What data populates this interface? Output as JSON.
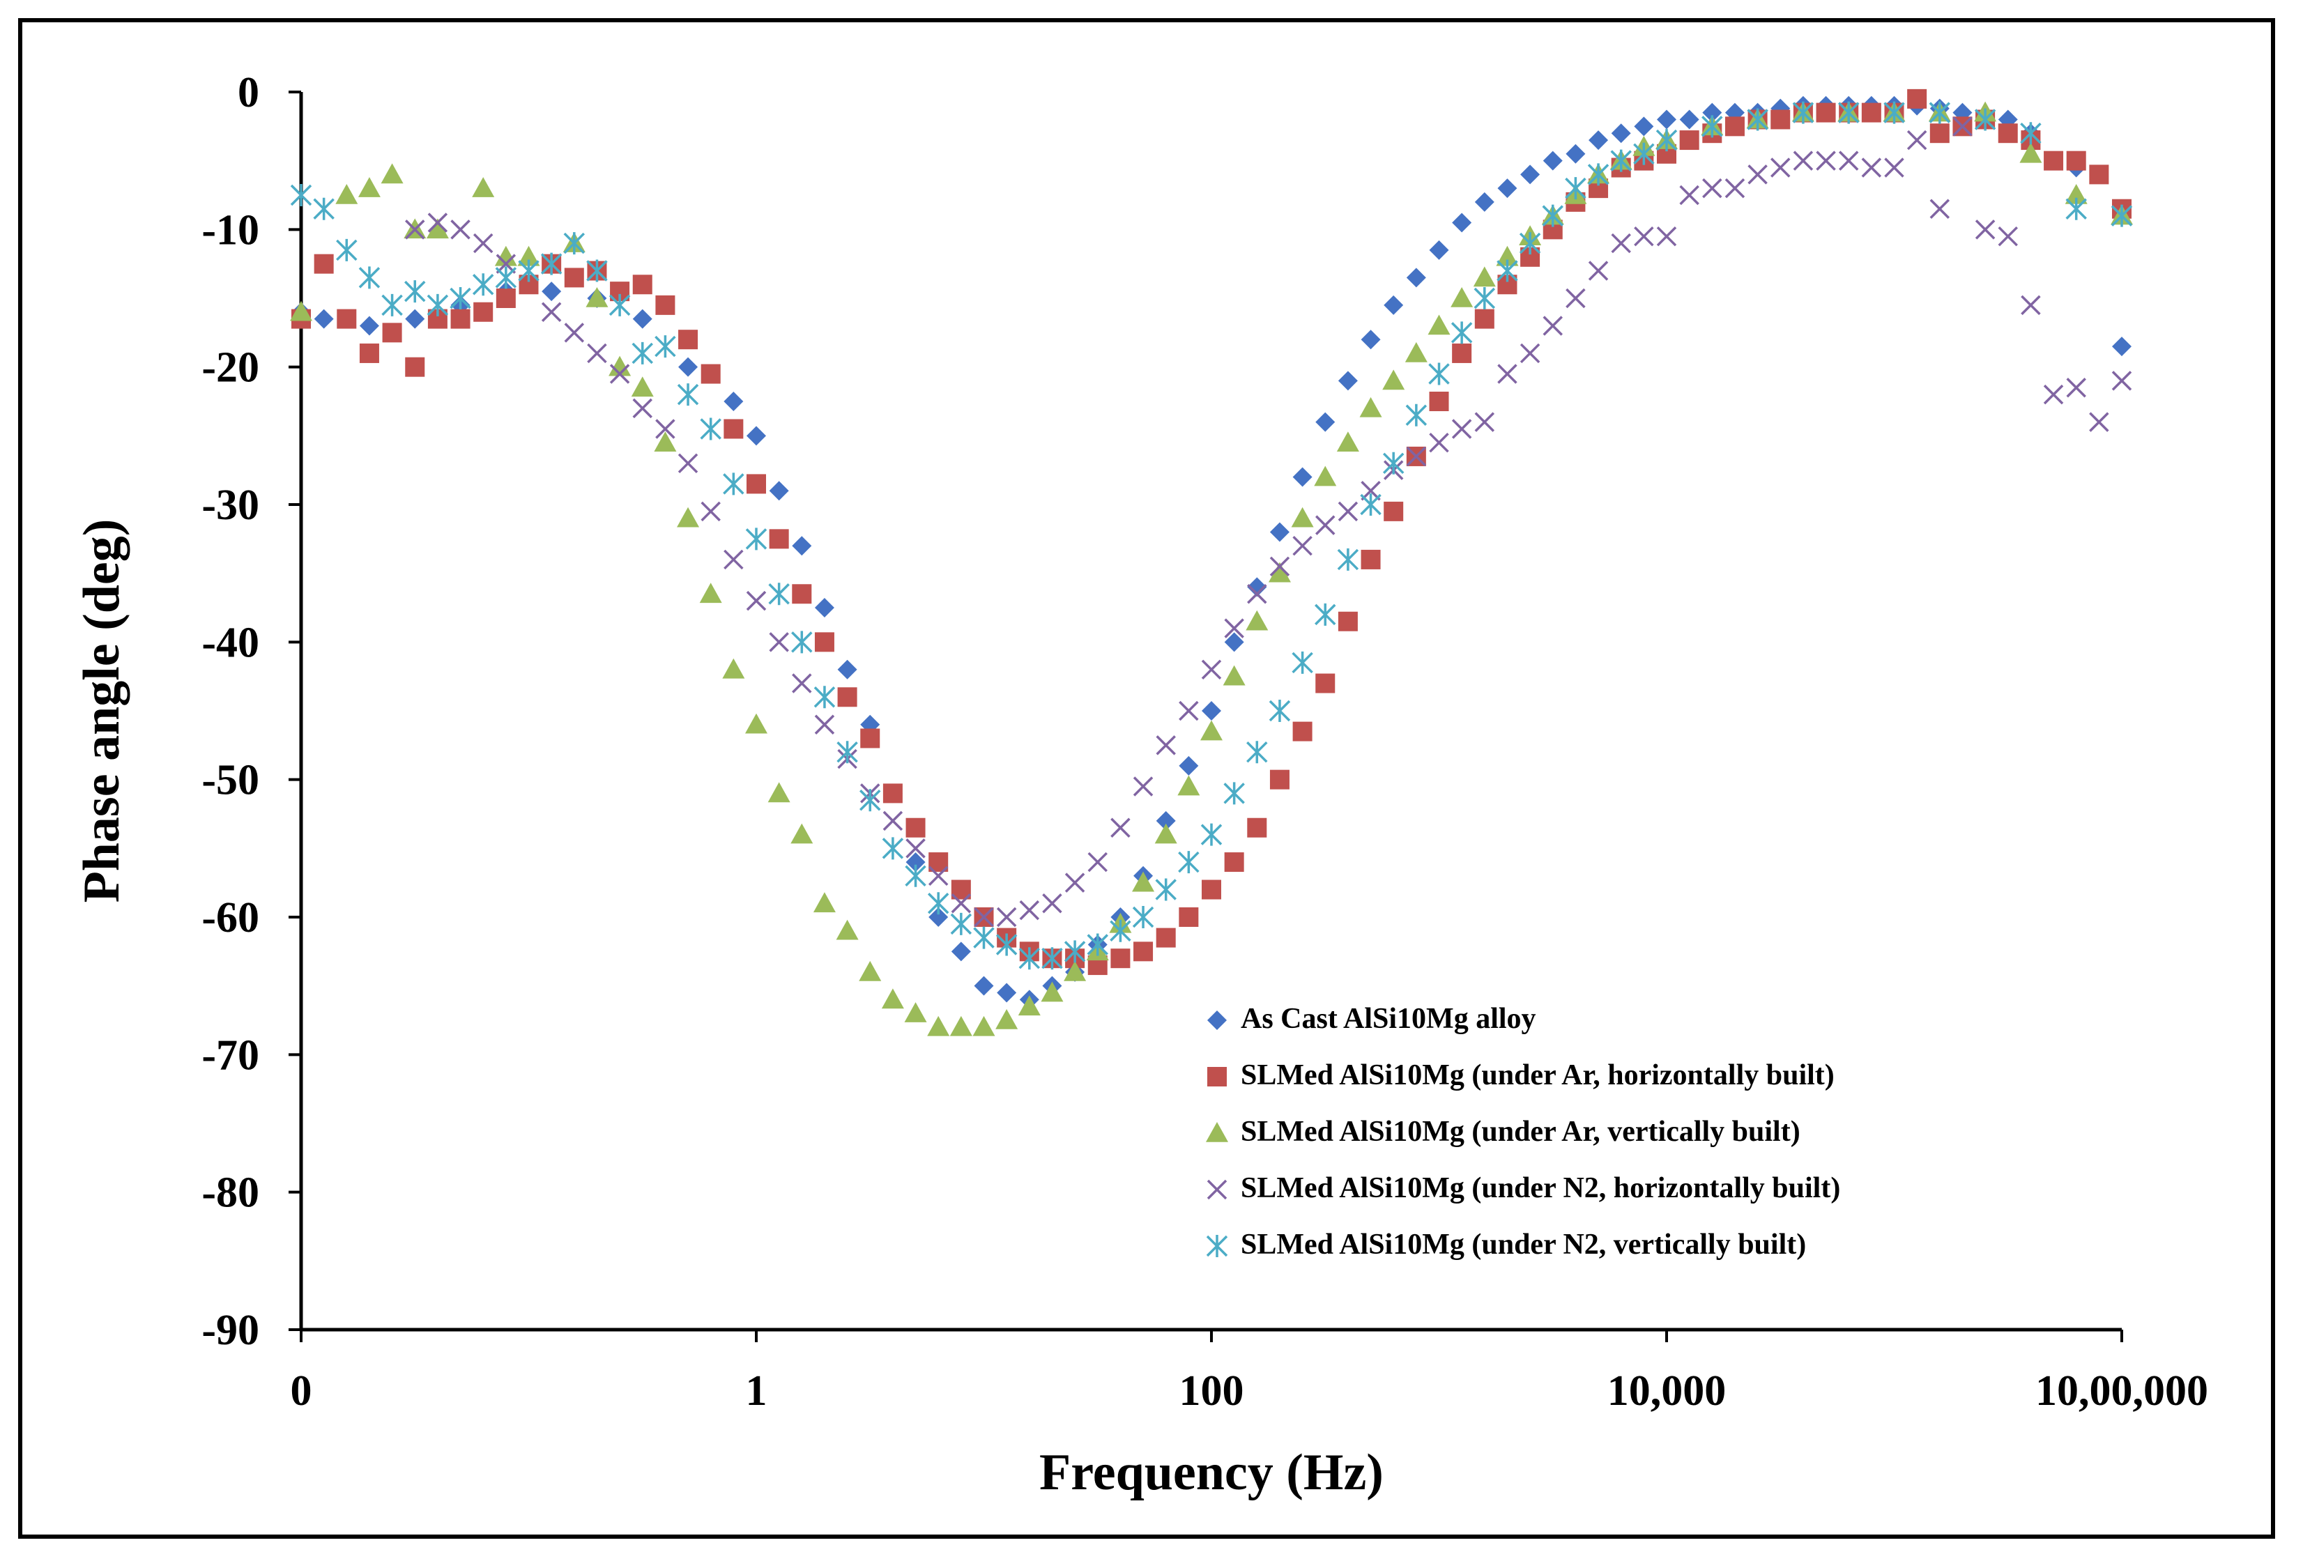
{
  "chart_data": {
    "type": "scatter",
    "title": "",
    "xlabel": "Frequency (Hz)",
    "ylabel": "Phase angle (deg)",
    "x_scale": "log",
    "xlim_log10": [
      -2,
      6
    ],
    "ylim": [
      -90,
      0
    ],
    "x_tick_labels": [
      "0",
      "1",
      "100",
      "10,000",
      "10,00,000"
    ],
    "y_ticks": [
      0,
      -10,
      -20,
      -30,
      -40,
      -50,
      -60,
      -70,
      -80,
      -90
    ],
    "legend_position": "bottom-right inside plot",
    "grid": false,
    "x_note": "x values are log10 of frequency in Hz",
    "series": [
      {
        "name": "As Cast AlSi10Mg alloy",
        "marker": "diamond",
        "color": "#4472C4",
        "x": [
          -2,
          -1.9,
          -1.7,
          -1.5,
          -1.3,
          -1.1,
          -0.9,
          -0.7,
          -0.5,
          -0.3,
          -0.1,
          0.0,
          0.1,
          0.2,
          0.3,
          0.4,
          0.5,
          0.6,
          0.7,
          0.8,
          0.9,
          1.0,
          1.1,
          1.2,
          1.3,
          1.4,
          1.5,
          1.6,
          1.7,
          1.8,
          1.9,
          2.0,
          2.1,
          2.2,
          2.3,
          2.4,
          2.5,
          2.6,
          2.7,
          2.8,
          2.9,
          3.0,
          3.1,
          3.2,
          3.3,
          3.4,
          3.5,
          3.6,
          3.7,
          3.8,
          3.9,
          4.0,
          4.1,
          4.2,
          4.3,
          4.4,
          4.5,
          4.6,
          4.7,
          4.8,
          4.9,
          5.0,
          5.1,
          5.2,
          5.3,
          5.4,
          5.5,
          5.6,
          5.8,
          6.0
        ],
        "y": [
          -16,
          -16.5,
          -17,
          -16.5,
          -15.5,
          -14.5,
          -14.5,
          -15,
          -16.5,
          -20,
          -22.5,
          -25,
          -29,
          -33,
          -37.5,
          -42,
          -46,
          -51,
          -56,
          -60,
          -62.5,
          -65,
          -65.5,
          -66,
          -65,
          -64,
          -62,
          -60,
          -57,
          -53,
          -49,
          -45,
          -40,
          -36,
          -32,
          -28,
          -24,
          -21,
          -18,
          -15.5,
          -13.5,
          -11.5,
          -9.5,
          -8,
          -7,
          -6,
          -5,
          -4.5,
          -3.5,
          -3,
          -2.5,
          -2,
          -2,
          -1.5,
          -1.5,
          -1.5,
          -1.2,
          -1,
          -1,
          -1,
          -1,
          -1,
          -1,
          -1.2,
          -1.5,
          -2,
          -2,
          -3,
          -5.5,
          -18.5
        ]
      },
      {
        "name": "SLMed AlSi10Mg (under Ar, horizontally built)",
        "marker": "square",
        "color": "#C0504D",
        "x": [
          -2,
          -1.9,
          -1.8,
          -1.7,
          -1.6,
          -1.5,
          -1.4,
          -1.3,
          -1.2,
          -1.1,
          -1.0,
          -0.9,
          -0.8,
          -0.7,
          -0.6,
          -0.5,
          -0.4,
          -0.3,
          -0.2,
          -0.1,
          0.0,
          0.1,
          0.2,
          0.3,
          0.4,
          0.5,
          0.6,
          0.7,
          0.8,
          0.9,
          1.0,
          1.1,
          1.2,
          1.3,
          1.4,
          1.5,
          1.6,
          1.7,
          1.8,
          1.9,
          2.0,
          2.1,
          2.2,
          2.3,
          2.4,
          2.5,
          2.6,
          2.7,
          2.8,
          2.9,
          3.0,
          3.1,
          3.2,
          3.3,
          3.4,
          3.5,
          3.6,
          3.7,
          3.8,
          3.9,
          4.0,
          4.1,
          4.2,
          4.3,
          4.4,
          4.5,
          4.6,
          4.7,
          4.8,
          4.9,
          5.0,
          5.1,
          5.2,
          5.3,
          5.4,
          5.5,
          5.6,
          5.7,
          5.8,
          5.9,
          6.0
        ],
        "y": [
          -16.5,
          -12.5,
          -16.5,
          -19,
          -17.5,
          -20,
          -16.5,
          -16.5,
          -16,
          -15,
          -14,
          -12.5,
          -13.5,
          -13,
          -14.5,
          -14,
          -15.5,
          -18,
          -20.5,
          -24.5,
          -28.5,
          -32.5,
          -36.5,
          -40,
          -44,
          -47,
          -51,
          -53.5,
          -56,
          -58,
          -60,
          -61.5,
          -62.5,
          -63,
          -63,
          -63.5,
          -63,
          -62.5,
          -61.5,
          -60,
          -58,
          -56,
          -53.5,
          -50,
          -46.5,
          -43,
          -38.5,
          -34,
          -30.5,
          -26.5,
          -22.5,
          -19,
          -16.5,
          -14,
          -12,
          -10,
          -8,
          -7,
          -5.5,
          -5,
          -4.5,
          -3.5,
          -3,
          -2.5,
          -2,
          -2,
          -1.5,
          -1.5,
          -1.5,
          -1.5,
          -1.5,
          -0.5,
          -3,
          -2.5,
          -2,
          -3,
          -3.5,
          -5,
          -5,
          -6,
          -8.5
        ]
      },
      {
        "name": "SLMed AlSi10Mg (under Ar, vertically built)",
        "marker": "triangle",
        "color": "#9BBB59",
        "x": [
          -2,
          -1.8,
          -1.7,
          -1.6,
          -1.5,
          -1.4,
          -1.2,
          -1.1,
          -1.0,
          -0.8,
          -0.7,
          -0.6,
          -0.5,
          -0.4,
          -0.3,
          -0.2,
          -0.1,
          0.0,
          0.1,
          0.2,
          0.3,
          0.4,
          0.5,
          0.6,
          0.7,
          0.8,
          0.9,
          1.0,
          1.1,
          1.2,
          1.3,
          1.4,
          1.5,
          1.6,
          1.7,
          1.8,
          1.9,
          2.0,
          2.1,
          2.2,
          2.3,
          2.4,
          2.5,
          2.6,
          2.7,
          2.8,
          2.9,
          3.0,
          3.1,
          3.2,
          3.3,
          3.4,
          3.5,
          3.6,
          3.7,
          3.8,
          3.9,
          4.0,
          4.2,
          4.4,
          4.6,
          4.8,
          5.0,
          5.2,
          5.4,
          5.6,
          5.8,
          6.0
        ],
        "y": [
          -16,
          -7.5,
          -7,
          -6,
          -10,
          -10,
          -7,
          -12,
          -12,
          -11,
          -15,
          -20,
          -21.5,
          -25.5,
          -31,
          -36.5,
          -42,
          -46,
          -51,
          -54,
          -59,
          -61,
          -64,
          -66,
          -67,
          -68,
          -68,
          -68,
          -67.5,
          -66.5,
          -65.5,
          -64,
          -62.5,
          -60.5,
          -57.5,
          -54,
          -50.5,
          -46.5,
          -42.5,
          -38.5,
          -35,
          -31,
          -28,
          -25.5,
          -23,
          -21,
          -19,
          -17,
          -15,
          -13.5,
          -12,
          -10.5,
          -9,
          -7.5,
          -6,
          -5,
          -4,
          -3.5,
          -2.5,
          -2,
          -1.5,
          -1.5,
          -1.5,
          -1.5,
          -1.5,
          -4.5,
          -7.5,
          -9
        ]
      },
      {
        "name": "SLMed AlSi10Mg (under N2, horizontally built)",
        "marker": "x",
        "color": "#8064A2",
        "x": [
          -1.5,
          -1.4,
          -1.3,
          -1.2,
          -1.1,
          -0.9,
          -0.8,
          -0.7,
          -0.6,
          -0.5,
          -0.4,
          -0.3,
          -0.2,
          -0.1,
          0.0,
          0.1,
          0.2,
          0.3,
          0.4,
          0.5,
          0.6,
          0.7,
          0.8,
          0.9,
          1.0,
          1.1,
          1.2,
          1.3,
          1.4,
          1.5,
          1.6,
          1.7,
          1.8,
          1.9,
          2.0,
          2.1,
          2.2,
          2.3,
          2.4,
          2.5,
          2.6,
          2.7,
          2.8,
          2.9,
          3.0,
          3.1,
          3.2,
          3.3,
          3.4,
          3.5,
          3.6,
          3.7,
          3.8,
          3.9,
          4.0,
          4.1,
          4.2,
          4.3,
          4.4,
          4.5,
          4.6,
          4.7,
          4.8,
          4.9,
          5.0,
          5.1,
          5.2,
          5.3,
          5.4,
          5.5,
          5.6,
          5.7,
          5.8,
          5.9,
          6.0
        ],
        "y": [
          -10,
          -9.5,
          -10,
          -11,
          -12.5,
          -16,
          -17.5,
          -19,
          -20.5,
          -23,
          -24.5,
          -27,
          -30.5,
          -34,
          -37,
          -40,
          -43,
          -46,
          -48.5,
          -51,
          -53,
          -55,
          -57,
          -59,
          -60,
          -60,
          -59.5,
          -59,
          -57.5,
          -56,
          -53.5,
          -50.5,
          -47.5,
          -45,
          -42,
          -39,
          -36.5,
          -34.5,
          -33,
          -31.5,
          -30.5,
          -29,
          -27.5,
          -26.5,
          -25.5,
          -24.5,
          -24,
          -20.5,
          -19,
          -17,
          -15,
          -13,
          -11,
          -10.5,
          -10.5,
          -7.5,
          -7,
          -7,
          -6,
          -5.5,
          -5,
          -5,
          -5,
          -5.5,
          -5.5,
          -3.5,
          -8.5,
          -2.5,
          -10,
          -10.5,
          -15.5,
          -22,
          -21.5,
          -24,
          -21
        ]
      },
      {
        "name": "SLMed AlSi10Mg (under N2, vertically built)",
        "marker": "asterisk",
        "color": "#4BACC6",
        "x": [
          -2,
          -1.9,
          -1.8,
          -1.7,
          -1.6,
          -1.5,
          -1.4,
          -1.3,
          -1.2,
          -1.1,
          -1.0,
          -0.9,
          -0.8,
          -0.7,
          -0.6,
          -0.5,
          -0.4,
          -0.3,
          -0.2,
          -0.1,
          0.0,
          0.1,
          0.2,
          0.3,
          0.4,
          0.5,
          0.6,
          0.7,
          0.8,
          0.9,
          1.0,
          1.1,
          1.2,
          1.3,
          1.4,
          1.5,
          1.6,
          1.7,
          1.8,
          1.9,
          2.0,
          2.1,
          2.2,
          2.3,
          2.4,
          2.5,
          2.6,
          2.7,
          2.8,
          2.9,
          3.0,
          3.1,
          3.2,
          3.3,
          3.4,
          3.5,
          3.6,
          3.7,
          3.8,
          3.9,
          4.0,
          4.2,
          4.4,
          4.6,
          4.8,
          5.0,
          5.2,
          5.4,
          5.6,
          5.8,
          6.0
        ],
        "y": [
          -7.5,
          -8.5,
          -11.5,
          -13.5,
          -15.5,
          -14.5,
          -15.5,
          -15,
          -14,
          -13.5,
          -13,
          -12.5,
          -11,
          -13,
          -15.5,
          -19,
          -18.5,
          -22,
          -24.5,
          -28.5,
          -32.5,
          -36.5,
          -40,
          -44,
          -48,
          -51.5,
          -55,
          -57,
          -59,
          -60.5,
          -61.5,
          -62,
          -63,
          -63,
          -62.5,
          -62,
          -61,
          -60,
          -58,
          -56,
          -54,
          -51,
          -48,
          -45,
          -41.5,
          -38,
          -34,
          -30,
          -27,
          -23.5,
          -20.5,
          -17.5,
          -15,
          -13,
          -11,
          -9,
          -7,
          -6,
          -5,
          -4.5,
          -3.5,
          -2.5,
          -2,
          -1.5,
          -1.5,
          -1.5,
          -1.5,
          -2,
          -3,
          -8.5,
          -9
        ]
      }
    ]
  }
}
